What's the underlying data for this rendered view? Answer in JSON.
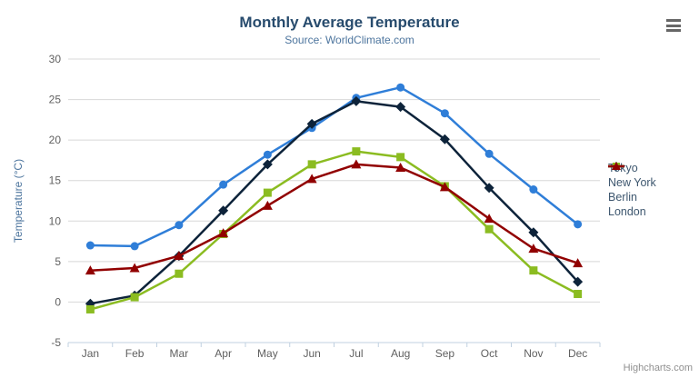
{
  "credit": "Highcharts.com",
  "colors": {
    "title": "#274b6d",
    "subtitle": "#4d759e",
    "axis_label": "#606060",
    "axis_title": "#4d759e",
    "legend_text": "#3e576f",
    "grid_line": "#d8d8d8",
    "axis_line": "#c0d0e0",
    "credit_text": "#909090",
    "menu_icon": "#666666"
  },
  "chart_data": {
    "type": "line",
    "title": "Monthly Average Temperature",
    "subtitle": "Source: WorldClimate.com",
    "xlabel": "",
    "ylabel": "Temperature (°C)",
    "ylim": [
      -5,
      30
    ],
    "ytick_interval": 5,
    "grid": true,
    "legend_position": "right",
    "categories": [
      "Jan",
      "Feb",
      "Mar",
      "Apr",
      "May",
      "Jun",
      "Jul",
      "Aug",
      "Sep",
      "Oct",
      "Nov",
      "Dec"
    ],
    "series": [
      {
        "name": "Tokyo",
        "color": "#2f7ed8",
        "marker": "circle",
        "values": [
          7.0,
          6.9,
          9.5,
          14.5,
          18.2,
          21.5,
          25.2,
          26.5,
          23.3,
          18.3,
          13.9,
          9.6
        ]
      },
      {
        "name": "New York",
        "color": "#0d233a",
        "marker": "diamond",
        "values": [
          -0.2,
          0.8,
          5.7,
          11.3,
          17.0,
          22.0,
          24.8,
          24.1,
          20.1,
          14.1,
          8.6,
          2.5
        ]
      },
      {
        "name": "Berlin",
        "color": "#8bbc21",
        "marker": "square",
        "values": [
          -0.9,
          0.6,
          3.5,
          8.4,
          13.5,
          17.0,
          18.6,
          17.9,
          14.3,
          9.0,
          3.9,
          1.0
        ]
      },
      {
        "name": "London",
        "color": "#910000",
        "marker": "triangle",
        "values": [
          3.9,
          4.2,
          5.7,
          8.5,
          11.9,
          15.2,
          17.0,
          16.6,
          14.2,
          10.3,
          6.6,
          4.8
        ]
      }
    ]
  }
}
